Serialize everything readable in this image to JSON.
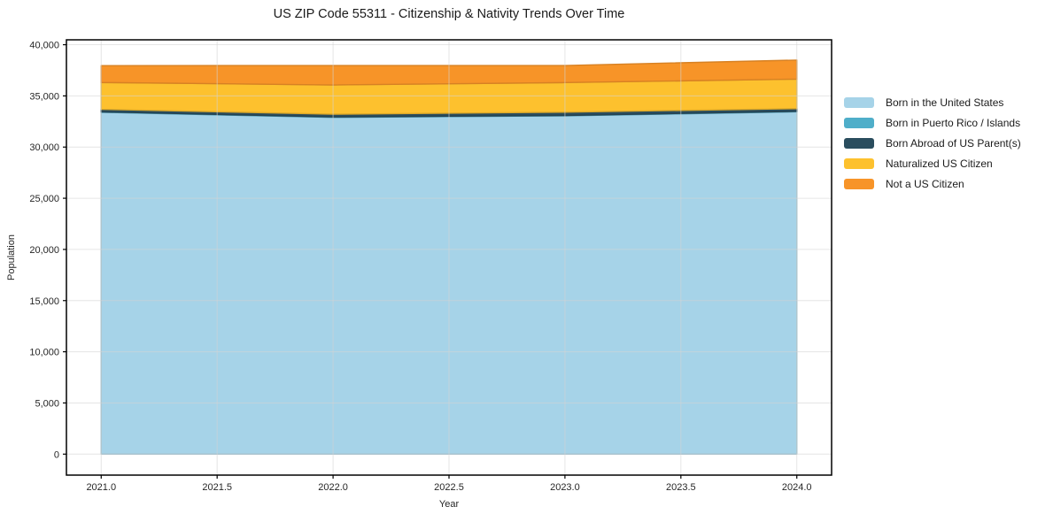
{
  "chart_data": {
    "type": "area",
    "stacked": true,
    "title": "US ZIP Code 55311 - Citizenship & Nativity Trends Over Time",
    "xlabel": "Year",
    "ylabel": "Population",
    "x": [
      2021,
      2022,
      2023,
      2024
    ],
    "series": [
      {
        "name": "Born in the United States",
        "color": "#A6D3E8",
        "values": [
          33400,
          32900,
          33050,
          33450
        ]
      },
      {
        "name": "Born in Puerto Rico / Islands",
        "color": "#4FAEC9",
        "values": [
          40,
          40,
          40,
          40
        ]
      },
      {
        "name": "Born Abroad of US Parent(s)",
        "color": "#2A4D5E",
        "values": [
          250,
          270,
          320,
          270
        ]
      },
      {
        "name": "Naturalized US Citizen",
        "color": "#FDC12E",
        "values": [
          2620,
          2860,
          2890,
          2880
        ]
      },
      {
        "name": "Not a US Citizen",
        "color": "#F79428",
        "values": [
          1650,
          1900,
          1670,
          1860
        ]
      }
    ],
    "stack_totals": [
      37960,
      37970,
      37970,
      38500
    ],
    "xticks": [
      "2021.0",
      "2021.5",
      "2022.0",
      "2022.5",
      "2023.0",
      "2023.5",
      "2024.0"
    ],
    "yticks": [
      0,
      5000,
      10000,
      15000,
      20000,
      25000,
      30000,
      35000,
      40000
    ],
    "xlim": [
      2020.85,
      2024.15
    ],
    "ylim": [
      -2050,
      40480
    ],
    "grid": true,
    "grid_color": "#d3d3d3",
    "axis_color": "#000000",
    "tick_label_color": "#262626",
    "legend_position": "right"
  }
}
